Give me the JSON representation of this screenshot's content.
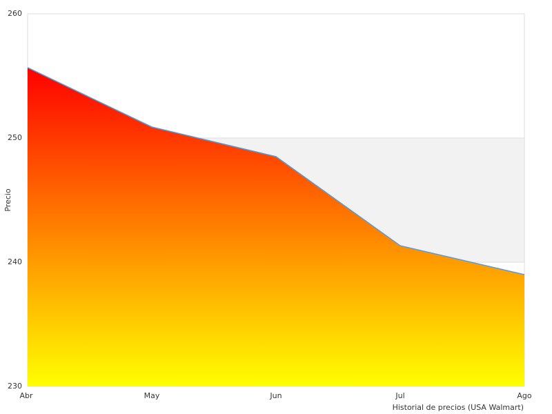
{
  "chart_data": {
    "type": "area",
    "categories": [
      "Abr",
      "May",
      "Jun",
      "Jul",
      "Ago"
    ],
    "values": [
      255.67,
      250.89,
      248.5,
      241.33,
      239.0
    ],
    "color": "#5b9bd5",
    "gradient": [
      "#ff0000",
      "#ffff00"
    ],
    "band_color": "#f2f2f2",
    "ylim": [
      230,
      260
    ],
    "yticks": [
      230,
      240,
      250,
      260
    ],
    "y_label": "Precio",
    "x_label": "Historial de precios (USA Walmart)"
  }
}
